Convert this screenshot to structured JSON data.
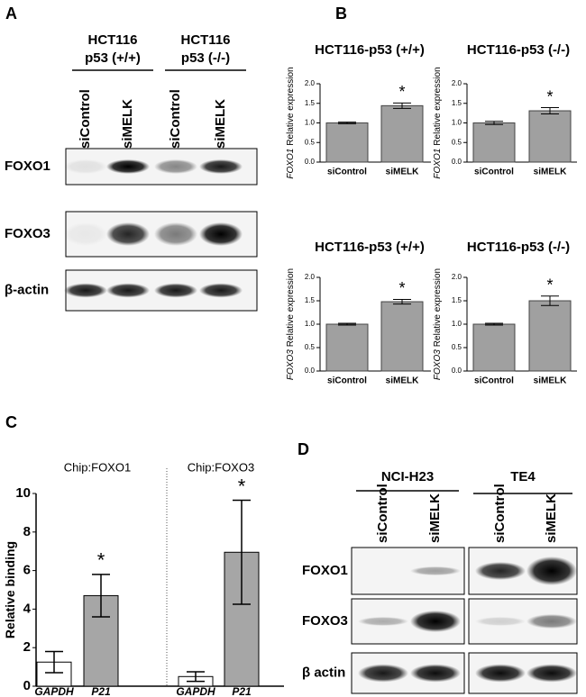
{
  "panels": {
    "a": "A",
    "b": "B",
    "c": "C",
    "d": "D"
  },
  "blot_a": {
    "groups": [
      {
        "cell_line": "HCT116",
        "genotype": "p53 (+/+)"
      },
      {
        "cell_line": "HCT116",
        "genotype": "p53 (-/-)"
      }
    ],
    "lanes": [
      "siControl",
      "siMELK",
      "siControl",
      "siMELK"
    ],
    "rows": [
      "FOXO1",
      "FOXO3",
      "β-actin"
    ]
  },
  "blot_d": {
    "groups": [
      "NCI-H23",
      "TE4"
    ],
    "lanes": [
      "siControl",
      "siMELK",
      "siControl",
      "siMELK"
    ],
    "rows": [
      "FOXO1",
      "FOXO3",
      "β actin"
    ]
  },
  "chart_data": [
    {
      "type": "bar",
      "title": "HCT116-p53 (+/+)",
      "gene": "FOXO1",
      "ylabel": "Relative expression",
      "categories": [
        "siControl",
        "siMELK"
      ],
      "values": [
        1.0,
        1.44
      ],
      "errors": [
        0.02,
        0.07
      ],
      "color": "#a0a0a0",
      "annotation": "*",
      "ylim": [
        0,
        2
      ],
      "yticks": [
        {
          "value": 0,
          "label": "0.0"
        },
        {
          "value": 0.5,
          "label": "0.5"
        },
        {
          "value": 1,
          "label": "1.0"
        },
        {
          "value": 1.5,
          "label": "1.5"
        },
        {
          "value": 2,
          "label": "2.0"
        }
      ]
    },
    {
      "type": "bar",
      "title": "HCT116-p53 (-/-)",
      "gene": "FOXO1",
      "ylabel": "Relative expression",
      "categories": [
        "siControl",
        "siMELK"
      ],
      "values": [
        1.0,
        1.31
      ],
      "errors": [
        0.04,
        0.08
      ],
      "color": "#a0a0a0",
      "annotation": "*",
      "ylim": [
        0,
        2
      ],
      "yticks": [
        {
          "value": 0,
          "label": "0.0"
        },
        {
          "value": 0.5,
          "label": "0.5"
        },
        {
          "value": 1,
          "label": "1.0"
        },
        {
          "value": 1.5,
          "label": "1.5"
        },
        {
          "value": 2,
          "label": "2.0"
        }
      ]
    },
    {
      "type": "bar",
      "title": "HCT116-p53 (+/+)",
      "gene": "FOXO3",
      "ylabel": "Relative expression",
      "categories": [
        "siControl",
        "siMELK"
      ],
      "values": [
        1.0,
        1.48
      ],
      "errors": [
        0.02,
        0.05
      ],
      "color": "#a0a0a0",
      "annotation": "*",
      "ylim": [
        0,
        2
      ],
      "yticks": [
        {
          "value": 0,
          "label": "0.0"
        },
        {
          "value": 0.5,
          "label": "0.5"
        },
        {
          "value": 1,
          "label": "1.0"
        },
        {
          "value": 1.5,
          "label": "1.5"
        },
        {
          "value": 2,
          "label": "2.0"
        }
      ]
    },
    {
      "type": "bar",
      "title": "HCT116-p53 (-/-)",
      "gene": "FOXO3",
      "ylabel": "Relative expression",
      "categories": [
        "siControl",
        "siMELK"
      ],
      "values": [
        1.0,
        1.5
      ],
      "errors": [
        0.02,
        0.1
      ],
      "color": "#a0a0a0",
      "annotation": "*",
      "ylim": [
        0,
        2
      ],
      "yticks": [
        {
          "value": 0,
          "label": "0.0"
        },
        {
          "value": 0.5,
          "label": "0.5"
        },
        {
          "value": 1,
          "label": "1.0"
        },
        {
          "value": 1.5,
          "label": "1.5"
        },
        {
          "value": 2,
          "label": "2.0"
        }
      ]
    },
    {
      "type": "bar",
      "ylabel": "Relative binding",
      "groups": [
        "Chip:FOXO1",
        "Chip:FOXO3"
      ],
      "categories": [
        "GAPDH",
        "P21",
        "GAPDH",
        "P21"
      ],
      "values": [
        1.25,
        4.7,
        0.5,
        6.95
      ],
      "errors": [
        0.55,
        1.1,
        0.25,
        2.7
      ],
      "colors": [
        "#ffffff",
        "#a6a6a6",
        "#ffffff",
        "#a6a6a6"
      ],
      "annotation": "*",
      "ylim": [
        0,
        10
      ],
      "yticks": [
        0,
        2,
        4,
        6,
        8,
        10
      ]
    }
  ]
}
